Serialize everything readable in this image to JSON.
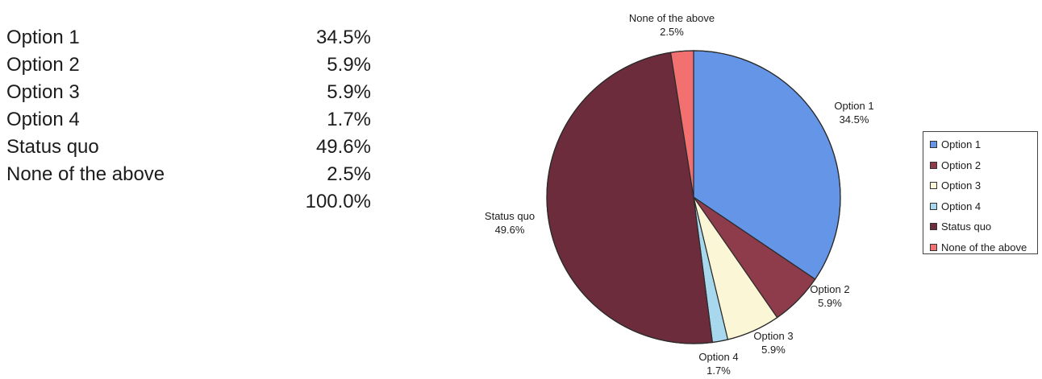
{
  "summary": {
    "rows": [
      {
        "label": "Option 1",
        "value": "34.5%"
      },
      {
        "label": "Option 2",
        "value": "5.9%"
      },
      {
        "label": "Option 3",
        "value": "5.9%"
      },
      {
        "label": "Option 4",
        "value": "1.7%"
      },
      {
        "label": "Status quo",
        "value": "49.6%"
      },
      {
        "label": "None of the above",
        "value": "2.5%"
      }
    ],
    "total": "100.0%"
  },
  "chart_data": {
    "type": "pie",
    "title": "",
    "categories": [
      "Option 1",
      "Option 2",
      "Option 3",
      "Option 4",
      "Status quo",
      "None of the above"
    ],
    "values": [
      34.5,
      5.9,
      5.9,
      1.7,
      49.6,
      2.5
    ],
    "value_labels": [
      "34.5%",
      "5.9%",
      "5.9%",
      "1.7%",
      "49.6%",
      "2.5%"
    ],
    "colors": [
      "#6495e6",
      "#8e3c4c",
      "#fbf6d6",
      "#a8d8ee",
      "#6c2c3c",
      "#f27070"
    ],
    "start_angle": "12 o'clock",
    "direction": "clockwise",
    "legend": {
      "placement": "right",
      "entries": [
        "Option 1",
        "Option 2",
        "Option 3",
        "Option 4",
        "Status quo",
        "None of the above"
      ]
    }
  }
}
